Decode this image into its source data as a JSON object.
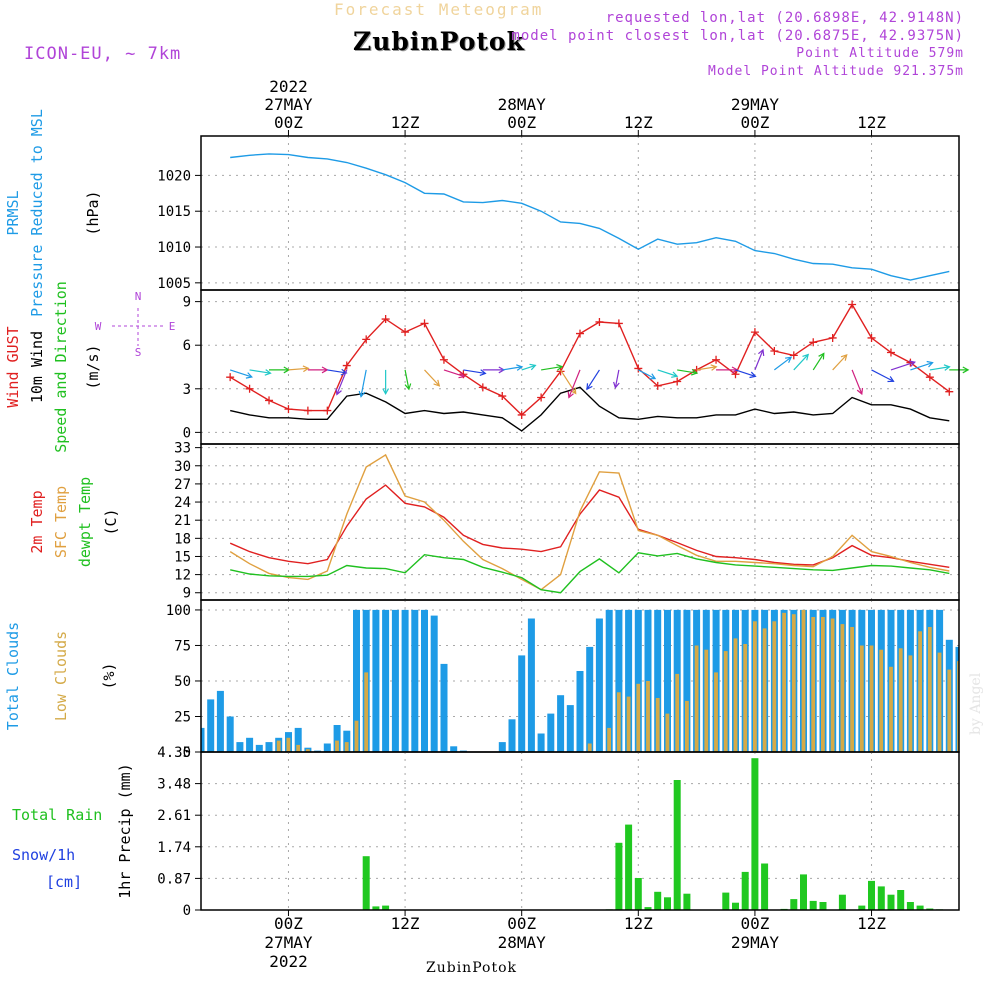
{
  "header": {
    "title": "Forecast Meteogram",
    "station": "ZubinPotok",
    "model": "ICON-EU, ~ 7km",
    "requested": "requested lon,lat (20.6898E, 42.9148N)",
    "closest": "model point closest lon,lat (20.6875E, 42.9375N)",
    "point_altitude": "Point Altitude 579m",
    "model_altitude": "Model Point Altitude 921.375m"
  },
  "footer": {
    "station": "ZubinPotok",
    "credit": "by Angel"
  },
  "time_axis": {
    "top_labels": [
      {
        "lines": [
          "2022",
          "27MAY",
          "00Z"
        ],
        "t": 9
      },
      {
        "lines": [
          "12Z"
        ],
        "t": 21
      },
      {
        "lines": [
          "28MAY",
          "00Z"
        ],
        "t": 33
      },
      {
        "lines": [
          "12Z"
        ],
        "t": 45
      },
      {
        "lines": [
          "29MAY",
          "00Z"
        ],
        "t": 57
      },
      {
        "lines": [
          "12Z"
        ],
        "t": 69
      }
    ],
    "bottom_labels": [
      {
        "lines": [
          "00Z",
          "27MAY",
          "2022"
        ],
        "t": 9
      },
      {
        "lines": [
          "12Z"
        ],
        "t": 21
      },
      {
        "lines": [
          "00Z",
          "28MAY"
        ],
        "t": 33
      },
      {
        "lines": [
          "12Z"
        ],
        "t": 45
      },
      {
        "lines": [
          "00Z",
          "29MAY"
        ],
        "t": 57
      },
      {
        "lines": [
          "12Z"
        ],
        "t": 69
      }
    ]
  },
  "chart_data": [
    {
      "type": "line",
      "panel": "pressure",
      "ylabels": [
        {
          "text": "PRMSL",
          "color": "#1e9be6"
        },
        {
          "text": "Pressure Reduced to MSL",
          "color": "#1e9be6"
        },
        {
          "text": "(hPa)",
          "color": "#000000"
        }
      ],
      "ylim": [
        1004,
        1025.5
      ],
      "yticks": [
        1005,
        1010,
        1015,
        1020
      ],
      "x_hours": [
        3,
        5,
        7,
        9,
        11,
        13,
        15,
        17,
        19,
        21,
        23,
        25,
        27,
        29,
        31,
        33,
        35,
        37,
        39,
        41,
        43,
        45,
        47,
        49,
        51,
        53,
        55,
        57,
        59,
        61,
        63,
        65,
        67,
        69,
        71,
        73,
        75,
        77
      ],
      "series": [
        {
          "name": "PRMSL",
          "color": "#1e9be6",
          "values": [
            1022.5,
            1022.8,
            1023,
            1022.9,
            1022.5,
            1022.3,
            1021.8,
            1021,
            1020.1,
            1019,
            1017.5,
            1017.4,
            1016.3,
            1016.2,
            1016.5,
            1016.1,
            1015,
            1013.5,
            1013.3,
            1012.6,
            1011.2,
            1009.7,
            1011.1,
            1010.4,
            1010.6,
            1011.3,
            1010.8,
            1009.5,
            1009.1,
            1008.3,
            1007.7,
            1007.6,
            1007.1,
            1006.9,
            1006,
            1005.4,
            1006,
            1006.6
          ]
        }
      ]
    },
    {
      "type": "line",
      "panel": "wind",
      "ylabels": [
        {
          "text": "Wind GUST",
          "color": "#e02020"
        },
        {
          "text": "10m Wind",
          "color": "#000000"
        },
        {
          "text": "Speed and Direction",
          "color": "#20c020"
        },
        {
          "text": "(m/s)",
          "color": "#000000"
        }
      ],
      "compass": {
        "n": "N",
        "s": "S",
        "e": "E",
        "w": "W"
      },
      "ylim": [
        -0.8,
        9.8
      ],
      "yticks": [
        0,
        3,
        6,
        9
      ],
      "x_hours": [
        3,
        5,
        7,
        9,
        11,
        13,
        15,
        17,
        19,
        21,
        23,
        25,
        27,
        29,
        31,
        33,
        35,
        37,
        39,
        41,
        43,
        45,
        47,
        49,
        51,
        53,
        55,
        57,
        59,
        61,
        63,
        65,
        67,
        69,
        71,
        73,
        75,
        77
      ],
      "series": [
        {
          "name": "Wind GUST",
          "color": "#e02020",
          "values": [
            3.8,
            3.0,
            2.2,
            1.6,
            1.5,
            1.5,
            4.6,
            6.4,
            7.8,
            6.9,
            7.5,
            5.0,
            4.0,
            3.1,
            2.5,
            1.2,
            2.4,
            4.2,
            6.8,
            7.6,
            7.5,
            4.4,
            3.2,
            3.5,
            4.3,
            5.0,
            4.0,
            6.9,
            5.6,
            5.3,
            6.2,
            6.5,
            8.8,
            6.5,
            5.5,
            4.8,
            3.8,
            2.8
          ]
        },
        {
          "name": "10m Wind",
          "color": "#000000",
          "values": [
            1.5,
            1.2,
            1.0,
            1.0,
            0.9,
            0.9,
            2.5,
            2.7,
            2.1,
            1.3,
            1.5,
            1.3,
            1.4,
            1.2,
            1.0,
            0.1,
            1.2,
            2.7,
            3.1,
            1.8,
            1.0,
            0.9,
            1.1,
            1.0,
            1.0,
            1.2,
            1.2,
            1.6,
            1.3,
            1.4,
            1.2,
            1.3,
            2.4,
            1.9,
            1.9,
            1.6,
            1.0,
            0.8
          ]
        }
      ],
      "direction_deg": [
        290,
        280,
        270,
        265,
        270,
        280,
        20,
        10,
        0,
        350,
        320,
        290,
        280,
        270,
        260,
        250,
        260,
        330,
        20,
        30,
        10,
        300,
        290,
        280,
        260,
        270,
        290,
        200,
        230,
        220,
        210,
        220,
        340,
        300,
        250,
        250,
        260,
        270
      ]
    },
    {
      "type": "line",
      "panel": "temperature",
      "ylabels": [
        {
          "text": "2m Temp",
          "color": "#e02020"
        },
        {
          "text": "SFC Temp",
          "color": "#e0a040"
        },
        {
          "text": "dewpt Temp",
          "color": "#20c020"
        },
        {
          "text": "(C)",
          "color": "#000000"
        }
      ],
      "ylim": [
        7.8,
        33.6
      ],
      "yticks": [
        9,
        12,
        15,
        18,
        21,
        24,
        27,
        30,
        33
      ],
      "x_hours": [
        3,
        5,
        7,
        9,
        11,
        13,
        15,
        17,
        19,
        21,
        23,
        25,
        27,
        29,
        31,
        33,
        35,
        37,
        39,
        41,
        43,
        45,
        47,
        49,
        51,
        53,
        55,
        57,
        59,
        61,
        63,
        65,
        67,
        69,
        71,
        73,
        75,
        77
      ],
      "series": [
        {
          "name": "2m Temp",
          "color": "#e02020",
          "values": [
            17.2,
            15.8,
            14.8,
            14.2,
            13.8,
            14.5,
            20.0,
            24.5,
            26.8,
            23.8,
            23.2,
            21.5,
            18.5,
            17.0,
            16.4,
            16.2,
            15.8,
            16.6,
            22.0,
            26.0,
            24.8,
            19.5,
            18.5,
            17.3,
            16.0,
            15.0,
            14.8,
            14.5,
            14.0,
            13.7,
            13.6,
            14.8,
            16.8,
            15.2,
            14.8,
            14.2,
            13.7,
            13.2
          ]
        },
        {
          "name": "SFC Temp",
          "color": "#e0a040",
          "values": [
            15.8,
            13.8,
            12.2,
            11.5,
            11.2,
            12.6,
            22.0,
            29.8,
            31.8,
            25.0,
            24.0,
            21.0,
            17.5,
            14.5,
            13.0,
            11.2,
            9.5,
            12.0,
            22.5,
            29.0,
            28.8,
            19.3,
            18.5,
            16.8,
            15.2,
            14.2,
            14.2,
            14.0,
            13.8,
            13.5,
            13.3,
            15.0,
            18.5,
            15.8,
            15.0,
            14.0,
            13.2,
            12.6
          ]
        },
        {
          "name": "dewpt Temp",
          "color": "#20c020",
          "values": [
            12.8,
            12.1,
            11.8,
            11.7,
            11.7,
            11.9,
            13.5,
            13.1,
            13.0,
            12.3,
            15.3,
            14.8,
            14.5,
            13.2,
            12.4,
            11.5,
            9.5,
            9.0,
            12.5,
            14.6,
            12.3,
            15.6,
            15.1,
            15.5,
            14.6,
            14.0,
            13.6,
            13.4,
            13.2,
            13.0,
            12.8,
            12.7,
            13.1,
            13.5,
            13.4,
            13.1,
            12.8,
            12.2
          ]
        }
      ]
    },
    {
      "type": "bar",
      "panel": "clouds",
      "ylabels": [
        {
          "text": "Total Clouds",
          "color": "#1e9be6"
        },
        {
          "text": "Low Clouds",
          "color": "#d4aa48"
        },
        {
          "text": "(%)",
          "color": "#000000"
        }
      ],
      "ylim": [
        0,
        107
      ],
      "yticks": [
        0,
        25,
        50,
        75,
        100
      ],
      "x_hours": [
        0,
        1,
        2,
        3,
        4,
        5,
        6,
        7,
        8,
        9,
        10,
        11,
        12,
        13,
        14,
        15,
        16,
        17,
        18,
        19,
        20,
        21,
        22,
        23,
        24,
        25,
        26,
        27,
        28,
        29,
        30,
        31,
        32,
        33,
        34,
        35,
        36,
        37,
        38,
        39,
        40,
        41,
        42,
        43,
        44,
        45,
        46,
        47,
        48,
        49,
        50,
        51,
        52,
        53,
        54,
        55,
        56,
        57,
        58,
        59,
        60,
        61,
        62,
        63,
        64,
        65,
        66,
        67,
        68,
        69,
        70,
        71,
        72,
        73,
        74,
        75,
        76,
        77,
        78
      ],
      "series": [
        {
          "name": "Total Clouds",
          "color": "#1e9be6",
          "values": [
            17,
            37,
            43,
            25,
            7,
            10,
            5,
            7,
            10,
            14,
            17,
            3,
            1,
            6,
            19,
            15,
            100,
            100,
            100,
            100,
            100,
            100,
            100,
            100,
            96,
            62,
            4,
            1,
            0,
            0,
            0,
            7,
            23,
            68,
            94,
            13,
            27,
            40,
            33,
            57,
            74,
            94,
            100,
            100,
            100,
            100,
            100,
            100,
            100,
            100,
            100,
            100,
            100,
            100,
            100,
            100,
            100,
            100,
            100,
            100,
            100,
            100,
            100,
            100,
            100,
            100,
            100,
            100,
            100,
            100,
            100,
            100,
            100,
            100,
            100,
            100,
            100,
            79,
            74
          ]
        },
        {
          "name": "Low Clouds",
          "color": "#d4aa48",
          "values": [
            0,
            0,
            0,
            0,
            0,
            0,
            0,
            0,
            8,
            10,
            5,
            2,
            0,
            0,
            8,
            7,
            22,
            56,
            0,
            0,
            0,
            0,
            0,
            0,
            0,
            0,
            0,
            0,
            0,
            0,
            0,
            0,
            0,
            0,
            0,
            0,
            0,
            0,
            0,
            0,
            6,
            0,
            17,
            42,
            39,
            48,
            50,
            38,
            27,
            55,
            36,
            75,
            72,
            56,
            71,
            80,
            76,
            92,
            87,
            92,
            98,
            97,
            100,
            95,
            95,
            94,
            90,
            88,
            75,
            75,
            72,
            60,
            73,
            68,
            85,
            88,
            70,
            58,
            64
          ]
        }
      ]
    },
    {
      "type": "bar",
      "panel": "precip",
      "ylabels": [
        {
          "text": "Total  Rain",
          "color": "#20c020"
        },
        {
          "text": "Snow/1h",
          "color": "#2040e0"
        },
        {
          "text": "[cm]",
          "color": "#2040e0"
        },
        {
          "text": "1hr Precip (mm)",
          "color": "#000000"
        }
      ],
      "ylim": [
        0,
        4.35
      ],
      "yticks": [
        0,
        0.87,
        1.74,
        2.61,
        3.48,
        4.35
      ],
      "x_hours": [
        0,
        1,
        2,
        3,
        4,
        5,
        6,
        7,
        8,
        9,
        10,
        11,
        12,
        13,
        14,
        15,
        16,
        17,
        18,
        19,
        20,
        21,
        22,
        23,
        24,
        25,
        26,
        27,
        28,
        29,
        30,
        31,
        32,
        33,
        34,
        35,
        36,
        37,
        38,
        39,
        40,
        41,
        42,
        43,
        44,
        45,
        46,
        47,
        48,
        49,
        50,
        51,
        52,
        53,
        54,
        55,
        56,
        57,
        58,
        59,
        60,
        61,
        62,
        63,
        64,
        65,
        66,
        67,
        68,
        69,
        70,
        71,
        72,
        73,
        74,
        75,
        76,
        77,
        78
      ],
      "series": [
        {
          "name": "Total Rain",
          "color": "#20c820",
          "values": [
            0,
            0,
            0,
            0,
            0,
            0,
            0,
            0,
            0,
            0,
            0,
            0,
            0,
            0,
            0,
            0,
            0,
            1.48,
            0.1,
            0.12,
            0,
            0,
            0,
            0,
            0,
            0,
            0,
            0,
            0,
            0,
            0,
            0,
            0,
            0,
            0,
            0,
            0,
            0,
            0,
            0,
            0,
            0,
            0.02,
            1.85,
            2.35,
            0.88,
            0.08,
            0.5,
            0.35,
            3.58,
            0.45,
            0,
            0,
            0,
            0.48,
            0.2,
            1.05,
            4.18,
            1.28,
            0,
            0.03,
            0.3,
            0.98,
            0.25,
            0.22,
            0,
            0.42,
            0,
            0.12,
            0.8,
            0.65,
            0.42,
            0.55,
            0.22,
            0.12,
            0.04,
            0.02,
            0,
            0
          ]
        }
      ]
    }
  ]
}
